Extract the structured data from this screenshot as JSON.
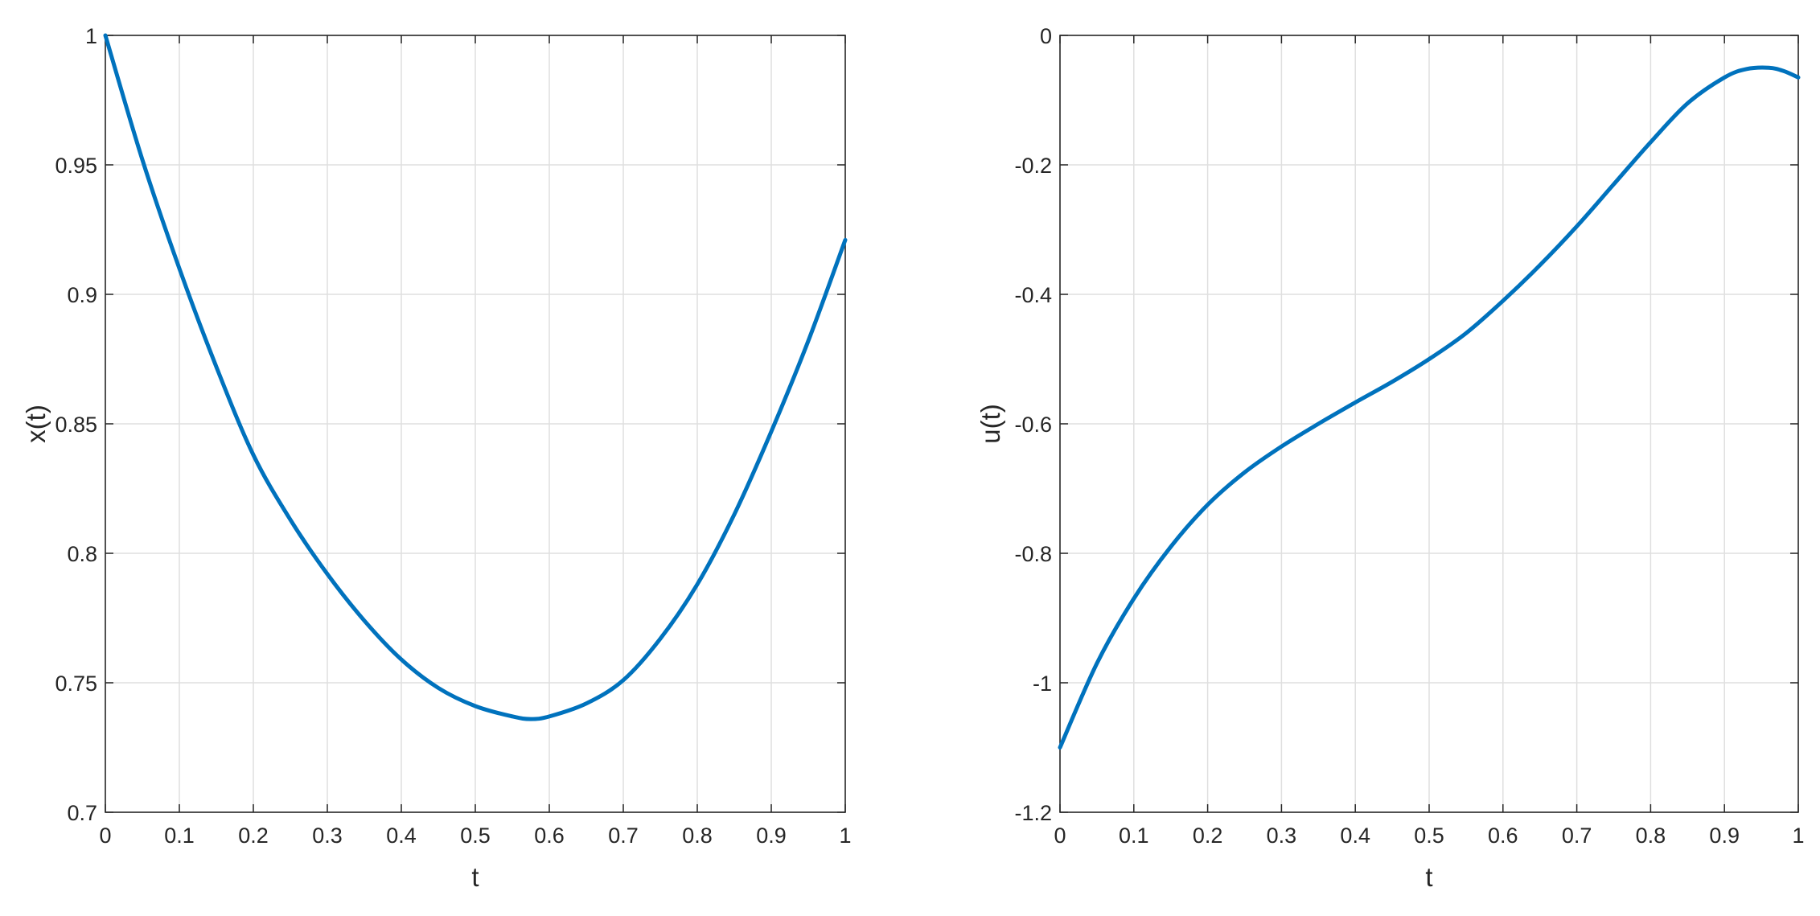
{
  "colors": {
    "line": "#0072bd",
    "grid": "#dfdfdf",
    "axes": "#262626",
    "background": "#ffffff"
  },
  "chart_data": [
    {
      "type": "line",
      "xlabel": "t",
      "ylabel": "x(t)",
      "xlim": [
        0,
        1
      ],
      "ylim": [
        0.7,
        1
      ],
      "grid": true,
      "x_ticks": [
        0,
        0.1,
        0.2,
        0.3,
        0.4,
        0.5,
        0.6,
        0.7,
        0.8,
        0.9,
        1
      ],
      "x_tick_labels": [
        "0",
        "0.1",
        "0.2",
        "0.3",
        "0.4",
        "0.5",
        "0.6",
        "0.7",
        "0.8",
        "0.9",
        "1"
      ],
      "y_ticks": [
        0.7,
        0.75,
        0.8,
        0.85,
        0.9,
        0.95,
        1
      ],
      "y_tick_labels": [
        "0.7",
        "0.75",
        "0.8",
        "0.85",
        "0.9",
        "0.95",
        "1"
      ],
      "series": [
        {
          "x": [
            0,
            0.05,
            0.1,
            0.15,
            0.2,
            0.25,
            0.3,
            0.35,
            0.4,
            0.45,
            0.5,
            0.55,
            0.575,
            0.6,
            0.65,
            0.7,
            0.75,
            0.8,
            0.85,
            0.9,
            0.95,
            1
          ],
          "y": [
            1,
            0.952,
            0.91,
            0.872,
            0.838,
            0.813,
            0.792,
            0.774,
            0.759,
            0.748,
            0.741,
            0.737,
            0.736,
            0.737,
            0.742,
            0.751,
            0.767,
            0.788,
            0.815,
            0.847,
            0.882,
            0.921
          ]
        }
      ]
    },
    {
      "type": "line",
      "xlabel": "t",
      "ylabel": "u(t)",
      "xlim": [
        0,
        1
      ],
      "ylim": [
        -1.2,
        0
      ],
      "grid": true,
      "x_ticks": [
        0,
        0.1,
        0.2,
        0.3,
        0.4,
        0.5,
        0.6,
        0.7,
        0.8,
        0.9,
        1
      ],
      "x_tick_labels": [
        "0",
        "0.1",
        "0.2",
        "0.3",
        "0.4",
        "0.5",
        "0.6",
        "0.7",
        "0.8",
        "0.9",
        "1"
      ],
      "y_ticks": [
        -1.2,
        -1,
        -0.8,
        -0.6,
        -0.4,
        -0.2,
        0
      ],
      "y_tick_labels": [
        "-1.2",
        "-1",
        "-0.8",
        "-0.6",
        "-0.4",
        "-0.2",
        "0"
      ],
      "series": [
        {
          "x": [
            0,
            0.05,
            0.1,
            0.15,
            0.2,
            0.25,
            0.3,
            0.35,
            0.4,
            0.45,
            0.5,
            0.55,
            0.6,
            0.65,
            0.7,
            0.75,
            0.8,
            0.85,
            0.9,
            0.93,
            0.96,
            0.98,
            1
          ],
          "y": [
            -1.1,
            -0.97,
            -0.87,
            -0.79,
            -0.725,
            -0.675,
            -0.635,
            -0.6,
            -0.567,
            -0.535,
            -0.5,
            -0.46,
            -0.41,
            -0.355,
            -0.295,
            -0.23,
            -0.165,
            -0.105,
            -0.065,
            -0.052,
            -0.05,
            -0.055,
            -0.065
          ]
        }
      ]
    }
  ]
}
